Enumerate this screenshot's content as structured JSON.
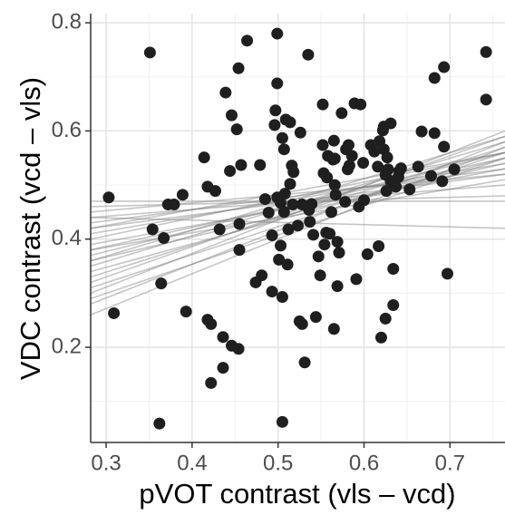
{
  "chart_data": {
    "type": "scatter",
    "x_label": "pVOT contrast (vls – vcd)",
    "y_label": "VDC contrast (vcd – vls)",
    "xlim": [
      0.282,
      0.764
    ],
    "ylim": [
      0.024,
      0.817
    ],
    "xticks": [
      0.3,
      0.4,
      0.5,
      0.6,
      0.7
    ],
    "yticks": [
      0.2,
      0.4,
      0.6,
      0.8
    ],
    "minor_xticks": [
      0.35,
      0.45,
      0.55,
      0.65,
      0.75
    ],
    "minor_yticks": [
      0.1,
      0.3,
      0.5,
      0.7
    ],
    "grid": true,
    "color": "#1f1f1f",
    "x": [
      0.303,
      0.309,
      0.351,
      0.354,
      0.362,
      0.364,
      0.367,
      0.372,
      0.379,
      0.389,
      0.393,
      0.414,
      0.418,
      0.418,
      0.422,
      0.422,
      0.427,
      0.432,
      0.436,
      0.436,
      0.439,
      0.444,
      0.446,
      0.446,
      0.452,
      0.454,
      0.454,
      0.455,
      0.455,
      0.457,
      0.464,
      0.474,
      0.479,
      0.481,
      0.485,
      0.489,
      0.493,
      0.493,
      0.496,
      0.497,
      0.499,
      0.499,
      0.499,
      0.501,
      0.503,
      0.503,
      0.505,
      0.507,
      0.507,
      0.505,
      0.505,
      0.508,
      0.509,
      0.511,
      0.512,
      0.514,
      0.514,
      0.516,
      0.517,
      0.518,
      0.523,
      0.525,
      0.528,
      0.526,
      0.528,
      0.531,
      0.535,
      0.536,
      0.537,
      0.539,
      0.541,
      0.544,
      0.547,
      0.549,
      0.552,
      0.553,
      0.552,
      0.554,
      0.556,
      0.557,
      0.558,
      0.56,
      0.562,
      0.564,
      0.565,
      0.566,
      0.565,
      0.566,
      0.567,
      0.569,
      0.569,
      0.571,
      0.574,
      0.578,
      0.579,
      0.581,
      0.582,
      0.583,
      0.586,
      0.589,
      0.591,
      0.594,
      0.596,
      0.599,
      0.6,
      0.604,
      0.608,
      0.612,
      0.616,
      0.617,
      0.618,
      0.62,
      0.622,
      0.623,
      0.623,
      0.625,
      0.626,
      0.627,
      0.625,
      0.628,
      0.631,
      0.631,
      0.634,
      0.634,
      0.637,
      0.64,
      0.641,
      0.643,
      0.653,
      0.663,
      0.667,
      0.678,
      0.682,
      0.682,
      0.691,
      0.693,
      0.693,
      0.697,
      0.705,
      0.742,
      0.742
    ],
    "values": [
      0.477,
      0.263,
      0.745,
      0.418,
      0.059,
      0.318,
      0.402,
      0.464,
      0.464,
      0.482,
      0.266,
      0.551,
      0.251,
      0.497,
      0.243,
      0.134,
      0.489,
      0.418,
      0.219,
      0.162,
      0.671,
      0.526,
      0.629,
      0.203,
      0.603,
      0.716,
      0.197,
      0.428,
      0.38,
      0.537,
      0.767,
      0.32,
      0.537,
      0.333,
      0.474,
      0.449,
      0.303,
      0.407,
      0.611,
      0.638,
      0.78,
      0.688,
      0.477,
      0.362,
      0.388,
      0.467,
      0.587,
      0.566,
      0.45,
      0.062,
      0.293,
      0.484,
      0.621,
      0.353,
      0.418,
      0.616,
      0.502,
      0.536,
      0.464,
      0.524,
      0.425,
      0.248,
      0.464,
      0.597,
      0.243,
      0.172,
      0.741,
      0.454,
      0.432,
      0.465,
      0.408,
      0.256,
      0.368,
      0.333,
      0.649,
      0.522,
      0.574,
      0.39,
      0.412,
      0.514,
      0.554,
      0.41,
      0.45,
      0.547,
      0.582,
      0.5,
      0.234,
      0.549,
      0.482,
      0.313,
      0.395,
      0.375,
      0.633,
      0.469,
      0.566,
      0.529,
      0.574,
      0.536,
      0.554,
      0.651,
      0.326,
      0.46,
      0.649,
      0.541,
      0.472,
      0.372,
      0.574,
      0.562,
      0.534,
      0.387,
      0.581,
      0.218,
      0.601,
      0.608,
      0.566,
      0.519,
      0.489,
      0.551,
      0.253,
      0.529,
      0.614,
      0.507,
      0.345,
      0.278,
      0.497,
      0.515,
      0.526,
      0.531,
      0.492,
      0.534,
      0.599,
      0.517,
      0.698,
      0.596,
      0.507,
      0.571,
      0.718,
      0.336,
      0.529,
      0.746,
      0.658
    ],
    "fit_x": [
      0.282,
      0.764
    ],
    "fit_color": "#7f7f7f",
    "fit_lines": [
      [
        0.26,
        0.57
      ],
      [
        0.28,
        0.58
      ],
      [
        0.3,
        0.6
      ],
      [
        0.31,
        0.56
      ],
      [
        0.33,
        0.57
      ],
      [
        0.34,
        0.55
      ],
      [
        0.35,
        0.58
      ],
      [
        0.36,
        0.54
      ],
      [
        0.37,
        0.56
      ],
      [
        0.38,
        0.55
      ],
      [
        0.39,
        0.53
      ],
      [
        0.4,
        0.56
      ],
      [
        0.41,
        0.54
      ],
      [
        0.42,
        0.52
      ],
      [
        0.43,
        0.53
      ],
      [
        0.44,
        0.5
      ],
      [
        0.45,
        0.52
      ],
      [
        0.46,
        0.48
      ],
      [
        0.47,
        0.47
      ],
      [
        0.44,
        0.42
      ],
      [
        0.36,
        0.59
      ],
      [
        0.32,
        0.59
      ],
      [
        0.29,
        0.55
      ],
      [
        0.38,
        0.51
      ],
      [
        0.42,
        0.56
      ]
    ]
  }
}
